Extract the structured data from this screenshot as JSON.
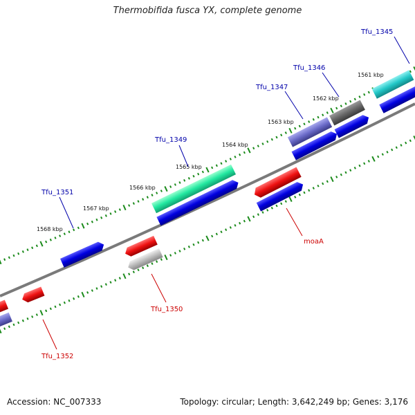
{
  "title": "Thermobifida fusca YX, complete genome",
  "footer": {
    "accession": "Accession: NC_007333",
    "summary": "Topology: circular; Length: 3,642,249 bp; Genes: 3,176"
  },
  "scale_labels": [
    "1561 kbp",
    "1562 kbp",
    "1563 kbp",
    "1564 kbp",
    "1565 kbp",
    "1566 kbp",
    "1567 kbp",
    "1568 kbp"
  ],
  "gene_labels": {
    "tfu_1345": "Tfu_1345",
    "tfu_1346": "Tfu_1346",
    "tfu_1347": "Tfu_1347",
    "tfu_1349": "Tfu_1349",
    "tfu_1351": "Tfu_1351",
    "moaA": "moaA",
    "tfu_1350": "Tfu_1350",
    "tfu_1352": "Tfu_1352"
  },
  "colors": {
    "forward_label": "#0000aa",
    "reverse_label": "#cc0000",
    "backbone": "#7a7a7a",
    "tick": "#1a8a1a",
    "cds_blue": "#0000dd",
    "teal": "#22c8c8",
    "green": "#22e8a0",
    "slate": "#6a6ac8",
    "dark_gray": "#666666",
    "red": "#ee1111",
    "light_gray": "#bbbbbb"
  }
}
